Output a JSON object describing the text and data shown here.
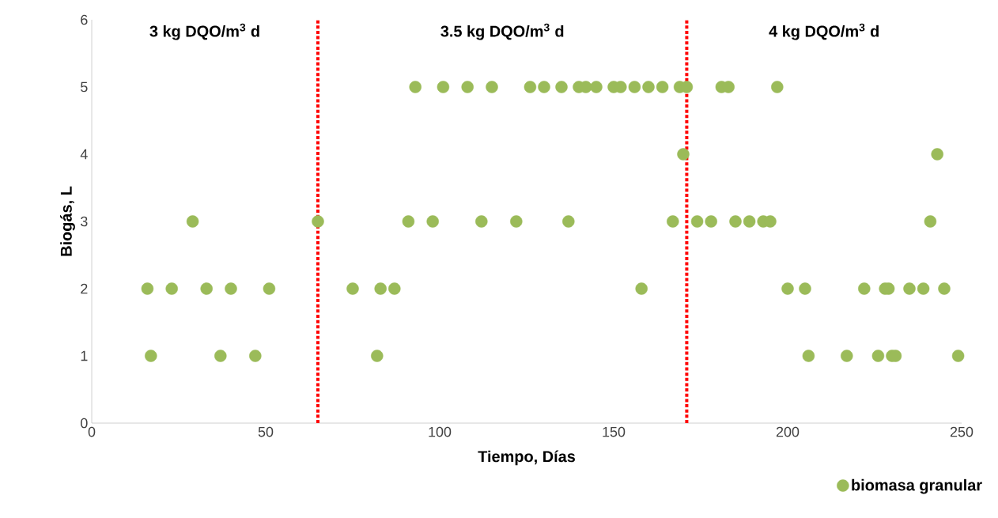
{
  "chart_data": {
    "type": "scatter",
    "xlabel": "Tiempo, Días",
    "ylabel": "Biogás, L",
    "xlim": [
      0,
      250
    ],
    "ylim": [
      0,
      6
    ],
    "xticks": [
      0,
      50,
      100,
      150,
      200,
      250
    ],
    "yticks": [
      0,
      1,
      2,
      3,
      4,
      5,
      6
    ],
    "grid": false,
    "legend": "bottom right",
    "marker": "circle",
    "series": [
      {
        "name": "biomasa granular",
        "color": "#9bbb59",
        "x": [
          16,
          23,
          33,
          40,
          51,
          75,
          83,
          87,
          158,
          200,
          205,
          222,
          228,
          229,
          235,
          239,
          245,
          17,
          37,
          47,
          82,
          206,
          217,
          226,
          230,
          231,
          249,
          29,
          65,
          91,
          98,
          112,
          122,
          137,
          167,
          174,
          178,
          185,
          189,
          193,
          195,
          241,
          170,
          243,
          93,
          101,
          108,
          115,
          126,
          130,
          135,
          140,
          142,
          145,
          150,
          152,
          156,
          160,
          164,
          169,
          171,
          181,
          183,
          197
        ],
        "values": [
          2,
          2,
          2,
          2,
          2,
          2,
          2,
          2,
          2,
          2,
          2,
          2,
          2,
          2,
          2,
          2,
          2,
          1,
          1,
          1,
          1,
          1,
          1,
          1,
          1,
          1,
          1,
          3,
          3,
          3,
          3,
          3,
          3,
          3,
          3,
          3,
          3,
          3,
          3,
          3,
          3,
          3,
          4,
          4,
          5,
          5,
          5,
          5,
          5,
          5,
          5,
          5,
          5,
          5,
          5,
          5,
          5,
          5,
          5,
          5,
          5,
          5,
          5,
          5
        ]
      }
    ],
    "ref_lines": [
      {
        "axis": "x",
        "value": 65,
        "color": "#ff0000",
        "line_style": "dashdot"
      },
      {
        "axis": "x",
        "value": 171,
        "color": "#ff0000",
        "line_style": "dashdot"
      }
    ],
    "annotations": [
      "3 kg DQO/m$^{3}$ d",
      "3.5 kg DQO/m$^{3}$ d",
      "4 kg DQO/m$^{3}$ d"
    ]
  }
}
